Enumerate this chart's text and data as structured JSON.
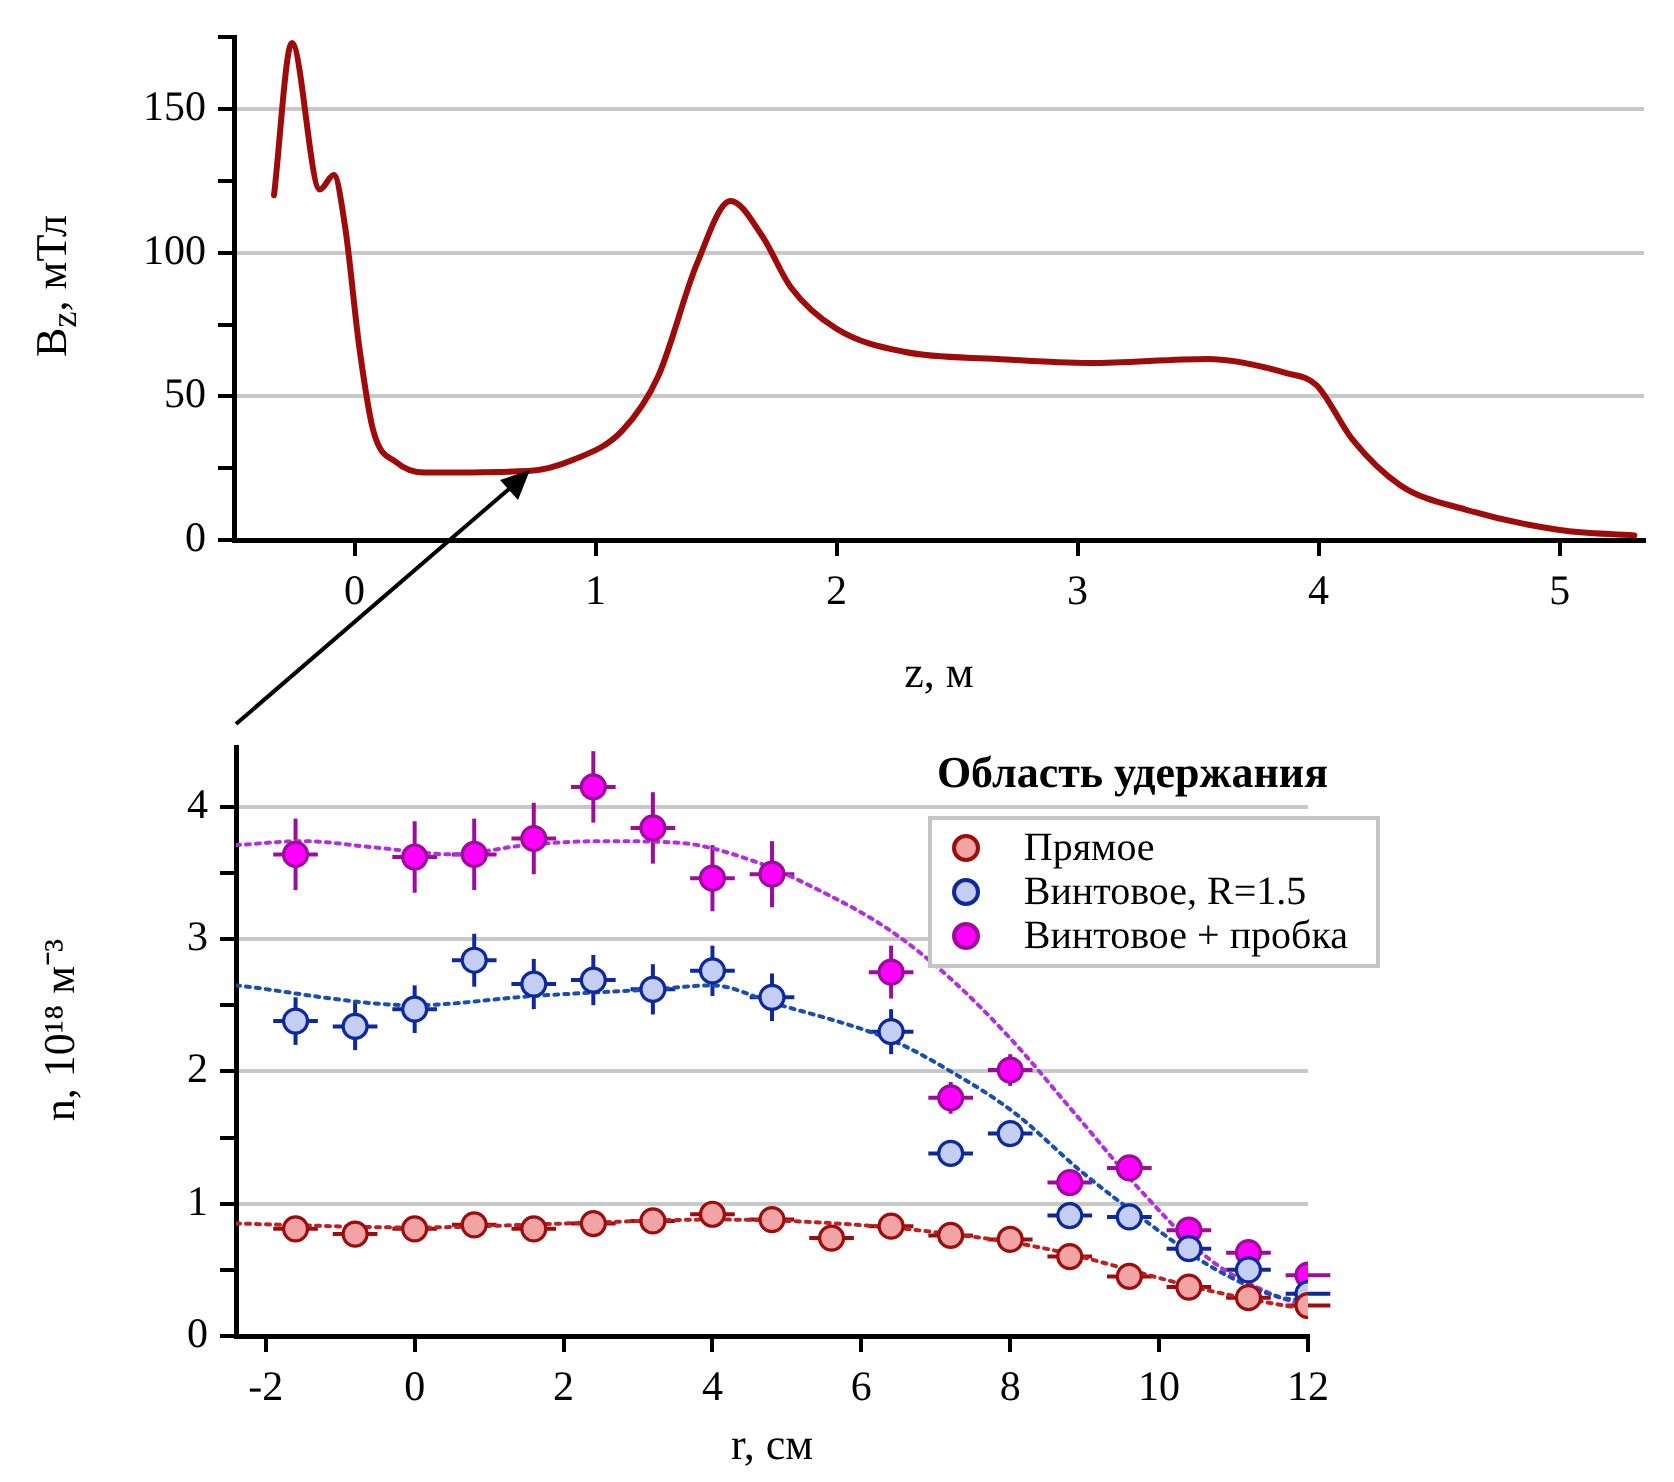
{
  "chart_data": [
    {
      "type": "line",
      "xlabel": "z, м",
      "ylabel": "B$_{z}$, мТл",
      "color": "#9e0b0b",
      "marker": "none",
      "grid": "y",
      "x": [
        -0.334,
        -0.26,
        -0.144,
        -0.086,
        -0.039,
        0.02,
        0.078,
        0.175,
        0.29,
        0.72,
        0.91,
        1.11,
        1.26,
        1.42,
        1.56,
        1.69,
        1.81,
        2.0,
        2.28,
        2.67,
        3.05,
        3.54,
        3.87,
        3.99,
        4.14,
        4.34,
        4.61,
        5.0,
        5.31
      ],
      "values": [
        120,
        173,
        122,
        127,
        109,
        67,
        38,
        27,
        23.5,
        24,
        28,
        38,
        57,
        96,
        118,
        106,
        88,
        73.5,
        65.5,
        63,
        61.6,
        63,
        58,
        54,
        35,
        19,
        10.6,
        3.5,
        1.6
      ],
      "xlim": [
        -0.5,
        5.35
      ],
      "ylim": [
        0,
        175
      ],
      "xticks": [
        0,
        1,
        2,
        3,
        4,
        5
      ],
      "yticks": [
        0,
        {
          "value": 25,
          "label": null
        },
        50,
        {
          "value": 75,
          "label": null
        },
        100,
        {
          "value": 125,
          "label": null
        },
        150,
        {
          "value": 175,
          "label": null
        }
      ]
    },
    {
      "type": "scatter",
      "xlabel": "r, см",
      "ylabel": "n, 10¹⁸ м⁻³",
      "annotations": [
        "Область удержания"
      ],
      "legend": "top right",
      "grid": "y",
      "marker": "circle",
      "x": [
        -1.6,
        -0.8,
        0,
        0.8,
        1.6,
        2.4,
        3.2,
        4,
        4.8,
        5.6,
        6.4,
        7.2,
        8,
        8.8,
        9.6,
        10.4,
        11.2,
        12
      ],
      "xlim": [
        -2.4,
        12
      ],
      "ylim": [
        0,
        4.45
      ],
      "xticks": [
        -2,
        0,
        2,
        4,
        6,
        8,
        10,
        12
      ],
      "yticks": [
        0,
        {
          "value": 0.5,
          "label": null
        },
        1,
        {
          "value": 1.5,
          "label": null
        },
        2,
        {
          "value": 2.5,
          "label": null
        },
        3,
        {
          "value": 3.5,
          "label": null
        },
        4
      ],
      "series": [
        {
          "name": "Прямое",
          "color": "#f2a4a4",
          "values": [
            0.81,
            0.77,
            0.81,
            0.84,
            0.81,
            0.85,
            0.87,
            0.92,
            0.88,
            0.74,
            0.83,
            0.76,
            0.73,
            0.6,
            0.45,
            0.37,
            0.29,
            0.23
          ],
          "xerrors": [
            0.3,
            0.3,
            0.3,
            0.3,
            0.3,
            0.3,
            0.3,
            0.3,
            0.3,
            0.3,
            0.3,
            0.3,
            0.3,
            0.3,
            0.3,
            0.3,
            0.3,
            0.3
          ]
        },
        {
          "name": "Винтовое, R=1.5",
          "color": "#c4cdf2",
          "values": [
            2.38,
            2.34,
            2.47,
            2.84,
            2.66,
            2.69,
            2.62,
            2.76,
            2.56,
            null,
            2.3,
            1.38,
            1.53,
            0.91,
            0.9,
            0.66,
            0.5,
            0.32
          ],
          "errors": [
            0.18,
            0.18,
            0.18,
            0.2,
            0.19,
            0.19,
            0.19,
            0.19,
            0.18,
            null,
            0.17,
            null,
            null,
            null,
            null,
            null,
            null,
            null
          ],
          "xerrors": [
            0.3,
            0.3,
            0.3,
            0.3,
            0.3,
            0.3,
            0.3,
            0.3,
            0.3,
            null,
            0.3,
            0.3,
            0.3,
            0.3,
            0.3,
            0.3,
            0.3,
            0.3
          ]
        },
        {
          "name": "Винтовое + пробка",
          "color": "#ff00ff",
          "values": [
            3.64,
            null,
            3.62,
            3.64,
            3.76,
            4.15,
            3.84,
            3.46,
            3.49,
            null,
            2.75,
            1.8,
            2.01,
            1.16,
            1.27,
            0.8,
            0.63,
            0.46
          ],
          "errors": [
            0.27,
            null,
            0.27,
            0.27,
            0.27,
            0.27,
            0.27,
            0.25,
            0.25,
            null,
            0.2,
            0.12,
            0.12,
            null,
            null,
            null,
            null,
            null
          ],
          "xerrors": [
            0.3,
            null,
            0.3,
            0.3,
            0.3,
            0.3,
            0.3,
            0.3,
            0.3,
            null,
            0.3,
            0.3,
            0.3,
            0.3,
            0.3,
            0.3,
            0.3,
            0.3
          ]
        },
        {
          "type": "line",
          "line_style": "dotted",
          "marker": "none",
          "color": "#c02020",
          "x": [
            -2.4,
            0,
            2,
            4,
            5,
            6.4,
            7.2,
            8,
            8.8,
            9.6,
            10.4,
            11.2,
            12
          ],
          "values": [
            0.85,
            0.82,
            0.85,
            0.88,
            0.87,
            0.82,
            0.77,
            0.71,
            0.62,
            0.5,
            0.38,
            0.28,
            0.2
          ]
        },
        {
          "type": "line",
          "line_style": "dotted",
          "marker": "none",
          "color": "#1a4fb0",
          "x": [
            -2.4,
            0,
            1.6,
            3.2,
            4,
            4.8,
            6.43,
            7.2,
            8.05,
            8.94,
            9.84,
            10.74,
            11.64,
            12
          ],
          "values": [
            2.65,
            2.5,
            2.57,
            2.62,
            2.65,
            2.52,
            2.23,
            2.0,
            1.69,
            1.25,
            0.86,
            0.51,
            0.29,
            0.27
          ]
        },
        {
          "type": "line",
          "line_style": "dotted",
          "marker": "none",
          "color": "#b030e0",
          "x": [
            -2.4,
            -1.5,
            -0.5,
            0.5,
            1.5,
            2.5,
            3.5,
            4.5,
            5.5,
            6.4,
            7.2,
            8,
            8.9,
            9.8,
            10.7,
            11.5,
            12
          ],
          "values": [
            3.71,
            3.74,
            3.69,
            3.64,
            3.71,
            3.74,
            3.73,
            3.6,
            3.35,
            3.06,
            2.7,
            2.25,
            1.66,
            1.07,
            0.57,
            0.32,
            0.22
          ]
        }
      ]
    }
  ]
}
